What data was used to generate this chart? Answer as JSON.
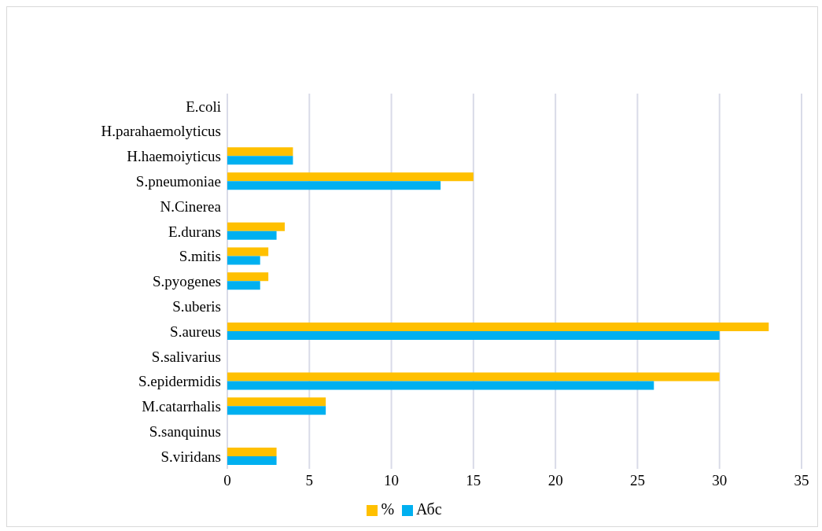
{
  "chart_data": {
    "type": "bar",
    "orientation": "horizontal",
    "categories": [
      "E.coli",
      "H.parahaemolyticus",
      "H.haemoiyticus",
      "S.pneumoniae",
      "N.Cinerea",
      "E.durans",
      "S.mitis",
      "S.pyogenes",
      "S.uberis",
      "S.aureus",
      "S.salivarius",
      "S.epidermidis",
      "M.catarrhalis",
      "S.sanquinus",
      "S.viridans"
    ],
    "series": [
      {
        "name": "%",
        "color": "#ffc000",
        "values": [
          0,
          0,
          4,
          15,
          0,
          3.5,
          2.5,
          2.5,
          0,
          33,
          0,
          30,
          6,
          0,
          3
        ]
      },
      {
        "name": "Абс",
        "color": "#00b0f0",
        "values": [
          0,
          0,
          4,
          13,
          0,
          3,
          2,
          2,
          0,
          30,
          0,
          26,
          6,
          0,
          3
        ]
      }
    ],
    "xlim": [
      0,
      35
    ],
    "xticks": [
      0,
      5,
      10,
      15,
      20,
      25,
      30,
      35
    ],
    "grid": "x",
    "legend": "bottom"
  }
}
